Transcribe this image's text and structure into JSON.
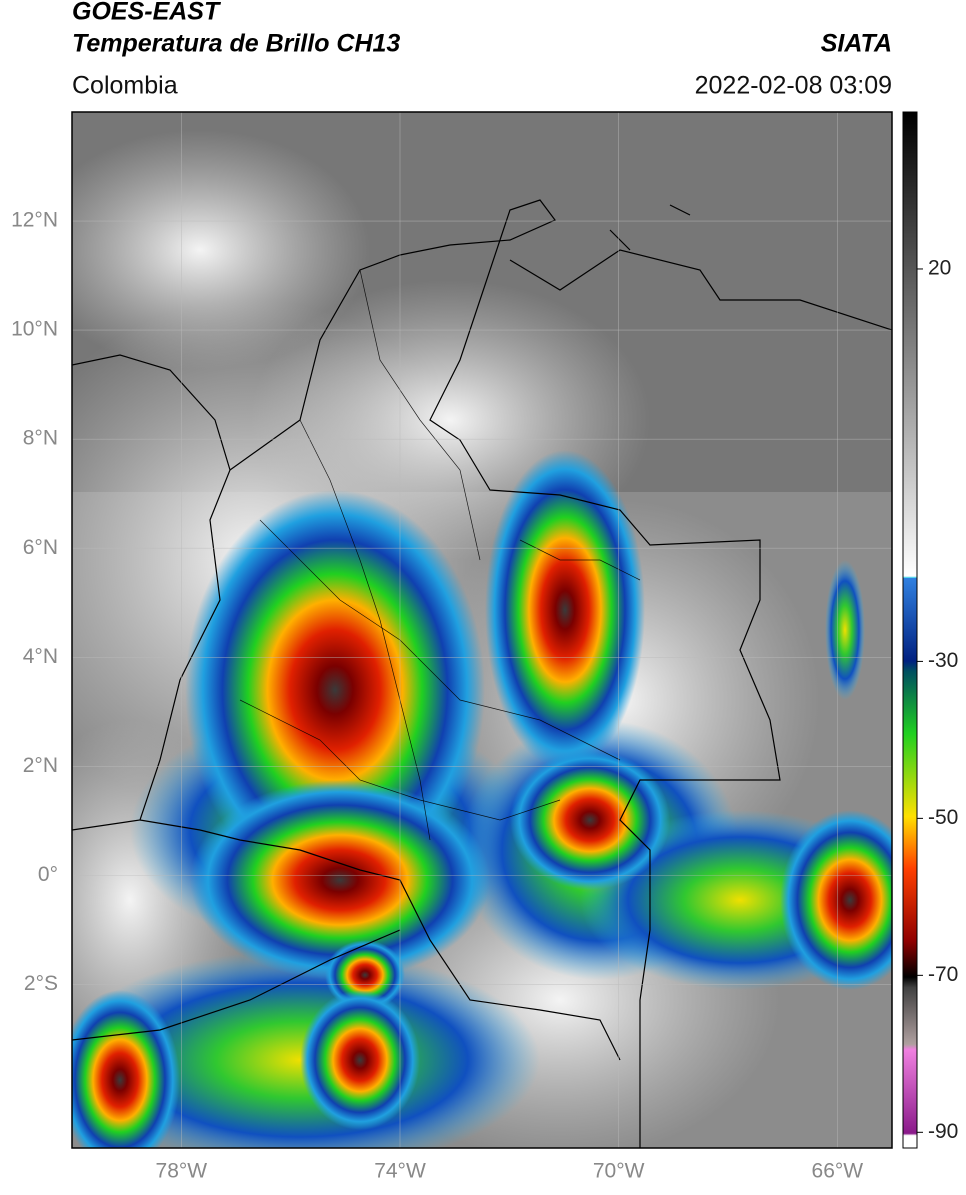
{
  "header": {
    "title": "GOES-EAST",
    "subtitle": "Temperatura de Brillo CH13",
    "region": "Colombia",
    "source": "SIATA",
    "datetime": "2022-02-08 03:09"
  },
  "map": {
    "xlim": [
      -80,
      -65
    ],
    "ylim": [
      -5,
      14
    ],
    "xticks": [
      {
        "value": -78,
        "label": "78°W"
      },
      {
        "value": -74,
        "label": "74°W"
      },
      {
        "value": -70,
        "label": "70°W"
      },
      {
        "value": -66,
        "label": "66°W"
      }
    ],
    "yticks": [
      {
        "value": 12,
        "label": "12°N"
      },
      {
        "value": 10,
        "label": "10°N"
      },
      {
        "value": 8,
        "label": "8°N"
      },
      {
        "value": 6,
        "label": "6°N"
      },
      {
        "value": 4,
        "label": "4°N"
      },
      {
        "value": 2,
        "label": "2°N"
      },
      {
        "value": 0,
        "label": "0°"
      },
      {
        "value": -2,
        "label": "2°S"
      }
    ],
    "grid": true
  },
  "colorbar": {
    "lim": [
      -92,
      40
    ],
    "ticks": [
      20,
      -30,
      -50,
      -70,
      -90
    ]
  }
}
